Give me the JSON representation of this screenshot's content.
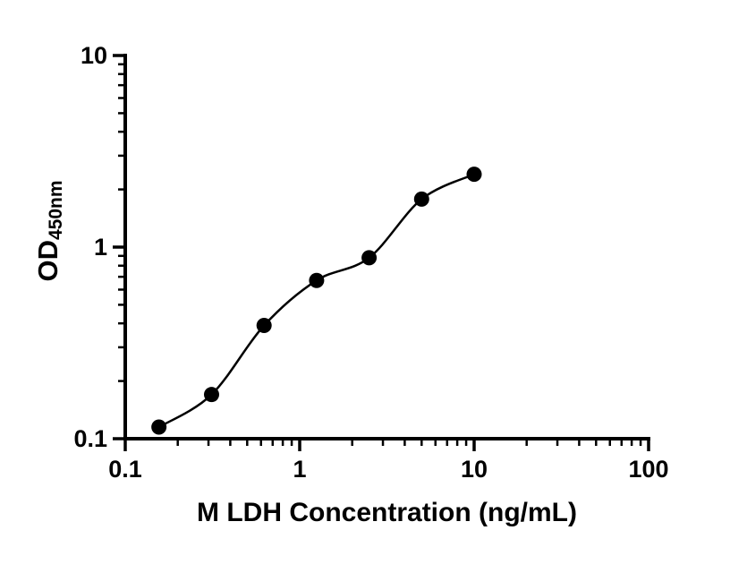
{
  "chart_data": {
    "type": "scatter",
    "title": "",
    "xlabel": "M LDH Concentration (ng/mL)",
    "ylabel_main": "OD",
    "ylabel_sub": "450nm",
    "x_scale": "log",
    "y_scale": "log",
    "xlim": [
      0.1,
      100
    ],
    "ylim": [
      0.1,
      10
    ],
    "grid": false,
    "legend": false,
    "x_major_ticks": [
      {
        "value": 0.1,
        "label": "0.1"
      },
      {
        "value": 1,
        "label": "1"
      },
      {
        "value": 10,
        "label": "10"
      },
      {
        "value": 100,
        "label": "100"
      }
    ],
    "y_major_ticks": [
      {
        "value": 0.1,
        "label": "0.1"
      },
      {
        "value": 1,
        "label": "1"
      },
      {
        "value": 10,
        "label": "10"
      }
    ],
    "x_minor_ticks": [
      0.2,
      0.3,
      0.4,
      0.5,
      0.6,
      0.7,
      0.8,
      0.9,
      2,
      3,
      4,
      5,
      6,
      7,
      8,
      9,
      20,
      30,
      40,
      50,
      60,
      70,
      80,
      90
    ],
    "y_minor_ticks": [
      0.2,
      0.3,
      0.4,
      0.5,
      0.6,
      0.7,
      0.8,
      0.9,
      2,
      3,
      4,
      5,
      6,
      7,
      8,
      9
    ],
    "points": [
      {
        "x": 0.156,
        "y": 0.115
      },
      {
        "x": 0.3125,
        "y": 0.17
      },
      {
        "x": 0.625,
        "y": 0.39
      },
      {
        "x": 1.25,
        "y": 0.67
      },
      {
        "x": 2.5,
        "y": 0.88
      },
      {
        "x": 5,
        "y": 1.78
      },
      {
        "x": 10,
        "y": 2.4
      }
    ]
  },
  "colors": {
    "background": "#ffffff",
    "axis": "#000000",
    "marker": "#000000",
    "curve": "#000000",
    "text": "#000000"
  }
}
